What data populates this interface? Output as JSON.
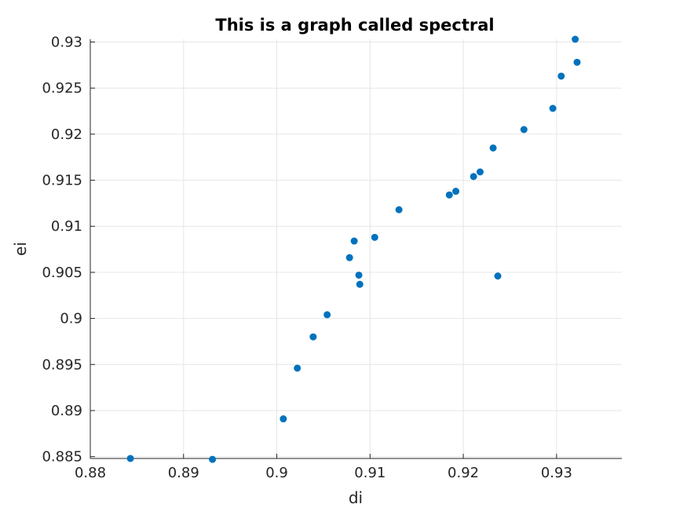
{
  "chart_data": {
    "type": "scatter",
    "title": "This is a graph called spectral",
    "xlabel": "di",
    "ylabel": "ei",
    "xlim": [
      0.88,
      0.937
    ],
    "ylim": [
      0.8848,
      0.9303
    ],
    "xticks": [
      0.88,
      0.89,
      0.9,
      0.91,
      0.92,
      0.93
    ],
    "xtick_labels": [
      "0.88",
      "0.89",
      "0.9",
      "0.91",
      "0.92",
      "0.93"
    ],
    "yticks": [
      0.885,
      0.89,
      0.895,
      0.9,
      0.905,
      0.91,
      0.915,
      0.92,
      0.925,
      0.93
    ],
    "ytick_labels": [
      "0.885",
      "0.89",
      "0.895",
      "0.9",
      "0.905",
      "0.91",
      "0.915",
      "0.92",
      "0.925",
      "0.93"
    ],
    "grid": true,
    "marker_color": "#0072bd",
    "series": [
      {
        "x": [
          0.8843,
          0.8931,
          0.9007,
          0.9022,
          0.9039,
          0.9054,
          0.9078,
          0.9083,
          0.9088,
          0.9089,
          0.9105,
          0.9131,
          0.9185,
          0.9192,
          0.9211,
          0.9218,
          0.9232,
          0.9237,
          0.9265,
          0.9296,
          0.9305,
          0.932,
          0.9322
        ],
        "y": [
          0.8848,
          0.8847,
          0.8891,
          0.8946,
          0.898,
          0.9004,
          0.9066,
          0.9084,
          0.9047,
          0.9037,
          0.9088,
          0.9118,
          0.9134,
          0.9138,
          0.9154,
          0.9159,
          0.9185,
          0.9046,
          0.9205,
          0.9228,
          0.9263,
          0.9303,
          0.9278
        ]
      }
    ]
  }
}
